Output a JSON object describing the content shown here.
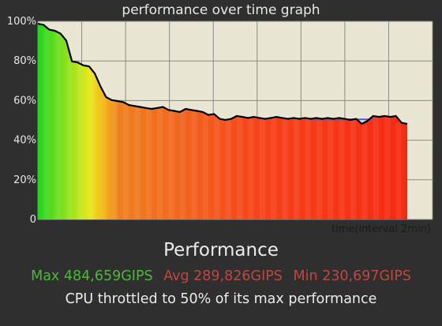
{
  "graph_title": "performance over time graph",
  "summary": {
    "title": "Performance",
    "max_label": "Max 484,659GIPS",
    "avg_label": "Avg 289,826GIPS",
    "min_label": "Min 230,697GIPS",
    "throttle_text": "CPU throttled to 50% of its max performance"
  },
  "colors": {
    "background": "#2f2f2f",
    "plot_background": "#e9e7d3",
    "grid": "#8a8a8a",
    "line": "#000000",
    "baseline": "#4a5ad8",
    "max": "#4cb83a",
    "avg": "#c0473f",
    "min": "#c0473f"
  },
  "chart_data": {
    "type": "area",
    "title": "performance over time graph",
    "xlabel": "time(interval 2min)",
    "ylabel": "",
    "y_tick_labels": [
      "100%",
      "80%",
      "60%",
      "40%",
      "20%",
      "0"
    ],
    "ylim": [
      0,
      100
    ],
    "x_tick_count": 9,
    "grid": true,
    "series": [
      {
        "values": [
          99,
          98,
          96,
          95,
          94,
          90,
          80,
          79,
          78,
          77,
          74,
          67,
          62,
          60,
          60,
          59,
          58,
          57,
          57,
          56,
          56,
          56,
          57,
          55,
          55,
          54,
          56,
          55,
          55,
          54,
          53,
          53,
          51,
          50,
          51,
          52,
          52,
          51,
          52,
          51,
          51,
          51,
          52,
          51,
          51,
          51,
          51,
          51,
          51,
          51,
          51,
          51,
          51,
          51,
          51,
          50,
          51,
          48,
          50,
          52,
          52,
          52,
          52,
          52,
          49,
          48
        ]
      }
    ],
    "baseline_level": 50.5
  }
}
